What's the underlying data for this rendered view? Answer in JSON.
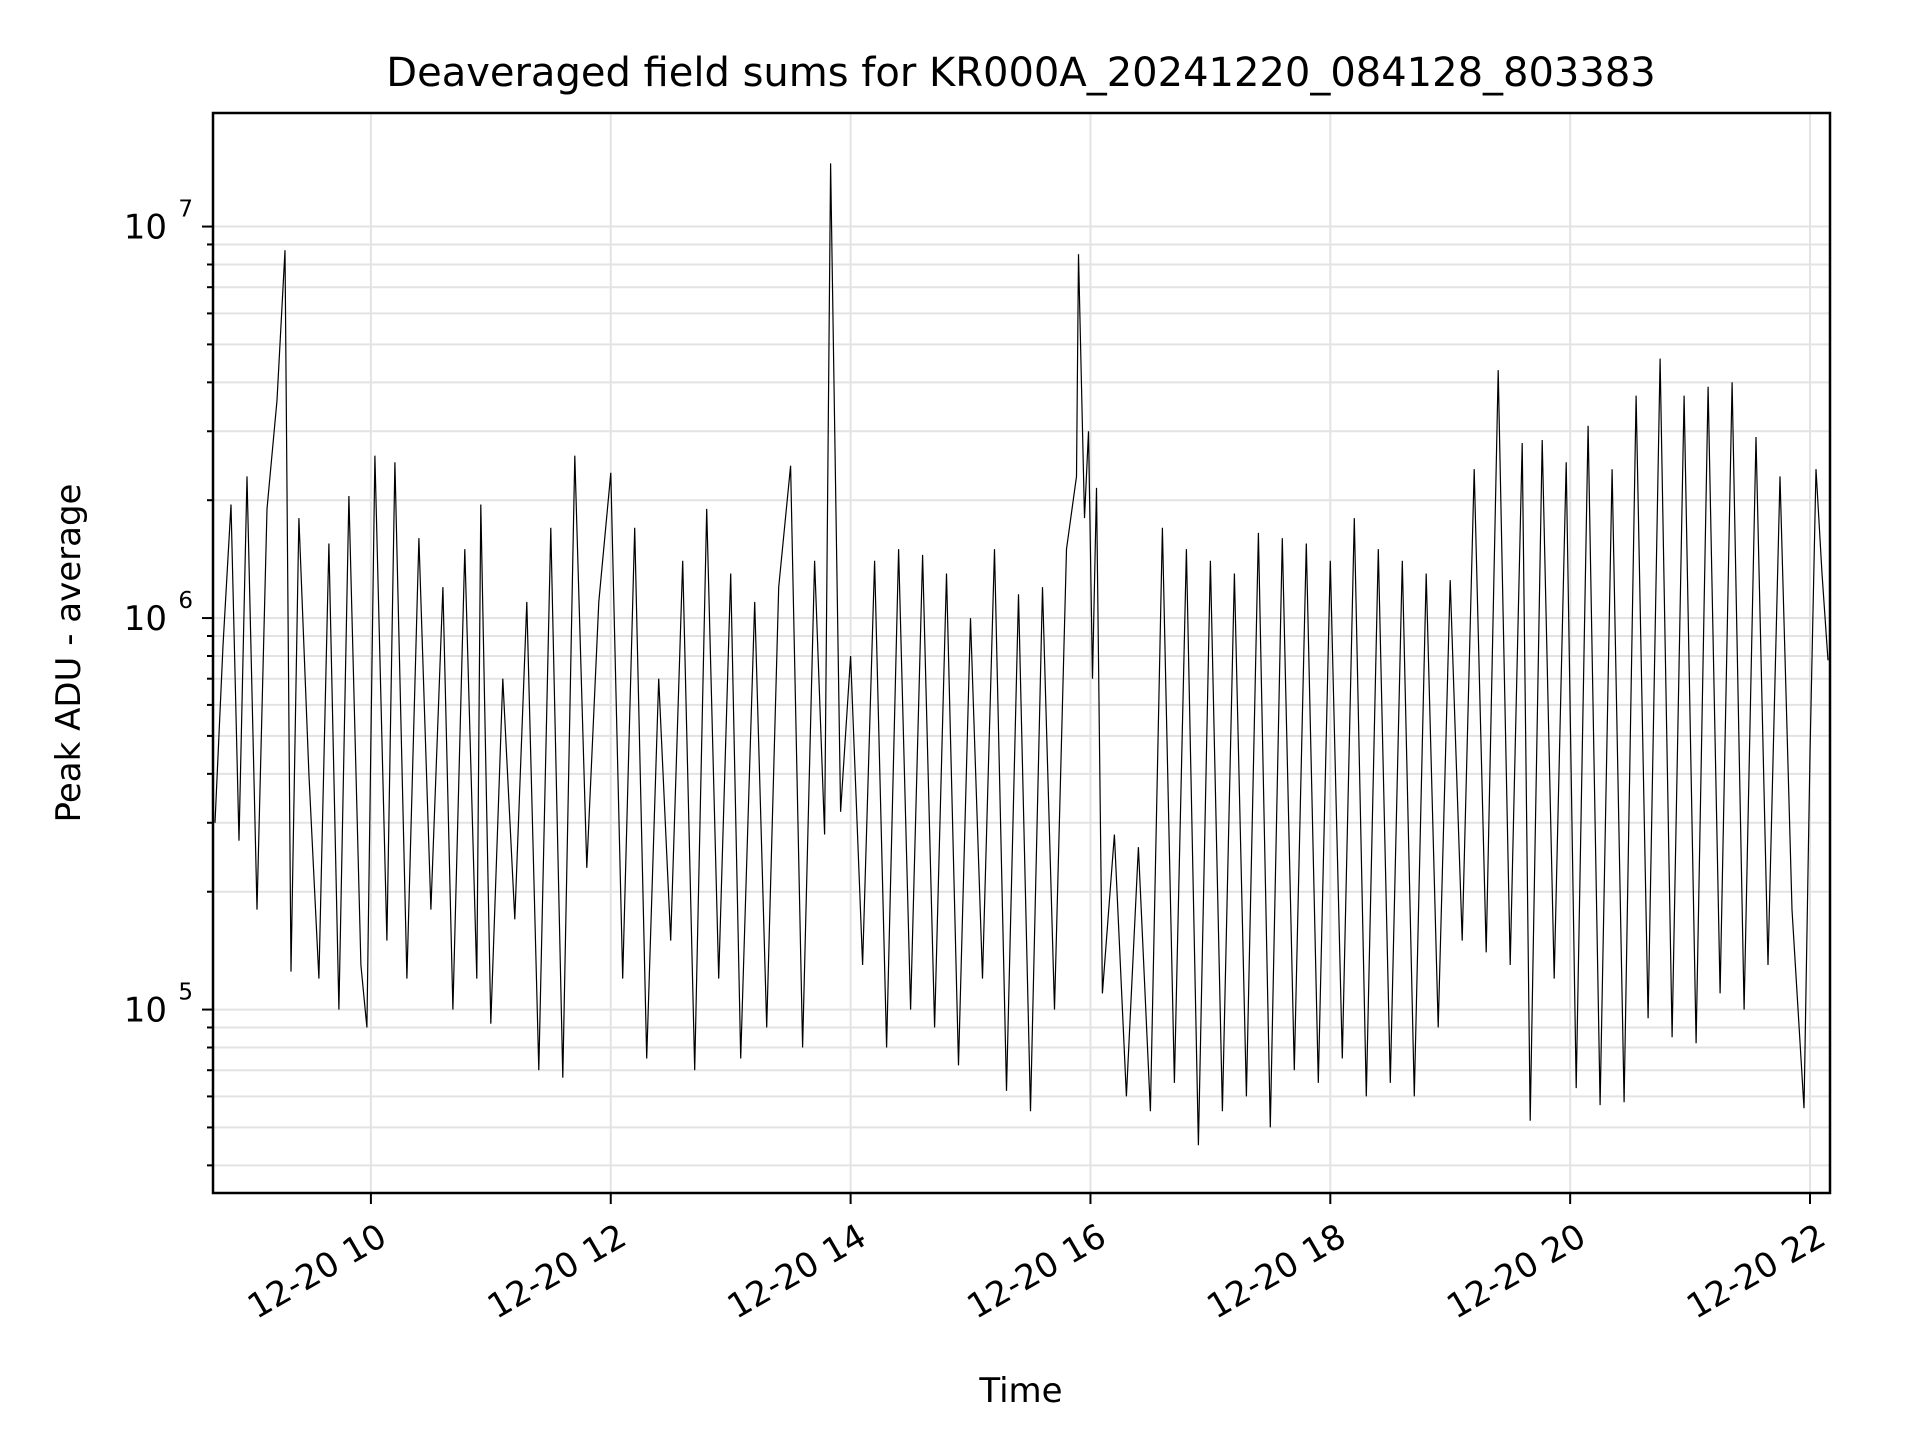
{
  "chart_data": {
    "type": "line",
    "title": "Deaveraged field sums for KR000A_20241220_084128_803383",
    "xlabel": "Time",
    "ylabel": "Peak ADU - average",
    "x_scale": "time",
    "y_scale": "log",
    "xlim": [
      "2024-12-20 08:41",
      "2024-12-20 22:10"
    ],
    "ylim": [
      34000,
      19500000
    ],
    "x_ticks": [
      {
        "label": "12-20 10",
        "t": "2024-12-20 10:00"
      },
      {
        "label": "12-20 12",
        "t": "2024-12-20 12:00"
      },
      {
        "label": "12-20 14",
        "t": "2024-12-20 14:00"
      },
      {
        "label": "12-20 16",
        "t": "2024-12-20 16:00"
      },
      {
        "label": "12-20 18",
        "t": "2024-12-20 18:00"
      },
      {
        "label": "12-20 20",
        "t": "2024-12-20 20:00"
      },
      {
        "label": "12-20 22",
        "t": "2024-12-20 22:00"
      }
    ],
    "y_ticks": [
      {
        "base": "10",
        "exp": "5",
        "value": 100000
      },
      {
        "base": "10",
        "exp": "6",
        "value": 1000000
      },
      {
        "base": "10",
        "exp": "7",
        "value": 10000000
      }
    ],
    "grid": true,
    "line_color": "#000000",
    "series": [
      {
        "points": [
          [
            "2024-12-20 08:42",
            300000
          ],
          [
            "2024-12-20 08:46",
            850000
          ],
          [
            "2024-12-20 08:50",
            1950000
          ],
          [
            "2024-12-20 08:54",
            270000
          ],
          [
            "2024-12-20 08:58",
            2300000
          ],
          [
            "2024-12-20 09:03",
            180000
          ],
          [
            "2024-12-20 09:08",
            1900000
          ],
          [
            "2024-12-20 09:13",
            3600000
          ],
          [
            "2024-12-20 09:17",
            8700000
          ],
          [
            "2024-12-20 09:20",
            125000
          ],
          [
            "2024-12-20 09:24",
            1800000
          ],
          [
            "2024-12-20 09:29",
            400000
          ],
          [
            "2024-12-20 09:34",
            120000
          ],
          [
            "2024-12-20 09:39",
            1550000
          ],
          [
            "2024-12-20 09:44",
            100000
          ],
          [
            "2024-12-20 09:49",
            2050000
          ],
          [
            "2024-12-20 09:55",
            130000
          ],
          [
            "2024-12-20 09:58",
            90000
          ],
          [
            "2024-12-20 10:02",
            2600000
          ],
          [
            "2024-12-20 10:08",
            150000
          ],
          [
            "2024-12-20 10:12",
            2500000
          ],
          [
            "2024-12-20 10:18",
            120000
          ],
          [
            "2024-12-20 10:24",
            1600000
          ],
          [
            "2024-12-20 10:30",
            180000
          ],
          [
            "2024-12-20 10:36",
            1200000
          ],
          [
            "2024-12-20 10:41",
            100000
          ],
          [
            "2024-12-20 10:47",
            1500000
          ],
          [
            "2024-12-20 10:53",
            120000
          ],
          [
            "2024-12-20 10:55",
            1950000
          ],
          [
            "2024-12-20 11:00",
            92000
          ],
          [
            "2024-12-20 11:06",
            700000
          ],
          [
            "2024-12-20 11:12",
            170000
          ],
          [
            "2024-12-20 11:18",
            1100000
          ],
          [
            "2024-12-20 11:24",
            70000
          ],
          [
            "2024-12-20 11:30",
            1700000
          ],
          [
            "2024-12-20 11:36",
            67000
          ],
          [
            "2024-12-20 11:42",
            2600000
          ],
          [
            "2024-12-20 11:48",
            230000
          ],
          [
            "2024-12-20 11:54",
            1100000
          ],
          [
            "2024-12-20 12:00",
            2350000
          ],
          [
            "2024-12-20 12:06",
            120000
          ],
          [
            "2024-12-20 12:12",
            1700000
          ],
          [
            "2024-12-20 12:18",
            75000
          ],
          [
            "2024-12-20 12:24",
            700000
          ],
          [
            "2024-12-20 12:30",
            150000
          ],
          [
            "2024-12-20 12:36",
            1400000
          ],
          [
            "2024-12-20 12:42",
            70000
          ],
          [
            "2024-12-20 12:48",
            1900000
          ],
          [
            "2024-12-20 12:54",
            120000
          ],
          [
            "2024-12-20 13:00",
            1300000
          ],
          [
            "2024-12-20 13:05",
            75000
          ],
          [
            "2024-12-20 13:12",
            1100000
          ],
          [
            "2024-12-20 13:18",
            90000
          ],
          [
            "2024-12-20 13:24",
            1200000
          ],
          [
            "2024-12-20 13:30",
            2450000
          ],
          [
            "2024-12-20 13:36",
            80000
          ],
          [
            "2024-12-20 13:42",
            1400000
          ],
          [
            "2024-12-20 13:47",
            280000
          ],
          [
            "2024-12-20 13:50",
            14500000
          ],
          [
            "2024-12-20 13:55",
            320000
          ],
          [
            "2024-12-20 14:00",
            800000
          ],
          [
            "2024-12-20 14:06",
            130000
          ],
          [
            "2024-12-20 14:12",
            1400000
          ],
          [
            "2024-12-20 14:18",
            80000
          ],
          [
            "2024-12-20 14:24",
            1500000
          ],
          [
            "2024-12-20 14:30",
            100000
          ],
          [
            "2024-12-20 14:36",
            1450000
          ],
          [
            "2024-12-20 14:42",
            90000
          ],
          [
            "2024-12-20 14:48",
            1300000
          ],
          [
            "2024-12-20 14:54",
            72000
          ],
          [
            "2024-12-20 15:00",
            1000000
          ],
          [
            "2024-12-20 15:06",
            120000
          ],
          [
            "2024-12-20 15:12",
            1500000
          ],
          [
            "2024-12-20 15:18",
            62000
          ],
          [
            "2024-12-20 15:24",
            1150000
          ],
          [
            "2024-12-20 15:30",
            55000
          ],
          [
            "2024-12-20 15:36",
            1200000
          ],
          [
            "2024-12-20 15:42",
            100000
          ],
          [
            "2024-12-20 15:48",
            1500000
          ],
          [
            "2024-12-20 15:53",
            2300000
          ],
          [
            "2024-12-20 15:54",
            8500000
          ],
          [
            "2024-12-20 15:57",
            1800000
          ],
          [
            "2024-12-20 15:59",
            3000000
          ],
          [
            "2024-12-20 16:01",
            700000
          ],
          [
            "2024-12-20 16:03",
            2150000
          ],
          [
            "2024-12-20 16:06",
            110000
          ],
          [
            "2024-12-20 16:12",
            280000
          ],
          [
            "2024-12-20 16:18",
            60000
          ],
          [
            "2024-12-20 16:24",
            260000
          ],
          [
            "2024-12-20 16:30",
            55000
          ],
          [
            "2024-12-20 16:36",
            1700000
          ],
          [
            "2024-12-20 16:42",
            65000
          ],
          [
            "2024-12-20 16:48",
            1500000
          ],
          [
            "2024-12-20 16:54",
            45000
          ],
          [
            "2024-12-20 17:00",
            1400000
          ],
          [
            "2024-12-20 17:06",
            55000
          ],
          [
            "2024-12-20 17:12",
            1300000
          ],
          [
            "2024-12-20 17:18",
            60000
          ],
          [
            "2024-12-20 17:24",
            1650000
          ],
          [
            "2024-12-20 17:30",
            50000
          ],
          [
            "2024-12-20 17:36",
            1600000
          ],
          [
            "2024-12-20 17:42",
            70000
          ],
          [
            "2024-12-20 17:48",
            1550000
          ],
          [
            "2024-12-20 17:54",
            65000
          ],
          [
            "2024-12-20 18:00",
            1400000
          ],
          [
            "2024-12-20 18:06",
            75000
          ],
          [
            "2024-12-20 18:12",
            1800000
          ],
          [
            "2024-12-20 18:18",
            60000
          ],
          [
            "2024-12-20 18:24",
            1500000
          ],
          [
            "2024-12-20 18:30",
            65000
          ],
          [
            "2024-12-20 18:36",
            1400000
          ],
          [
            "2024-12-20 18:42",
            60000
          ],
          [
            "2024-12-20 18:48",
            1300000
          ],
          [
            "2024-12-20 18:54",
            90000
          ],
          [
            "2024-12-20 19:00",
            1250000
          ],
          [
            "2024-12-20 19:06",
            150000
          ],
          [
            "2024-12-20 19:12",
            2400000
          ],
          [
            "2024-12-20 19:18",
            140000
          ],
          [
            "2024-12-20 19:24",
            4300000
          ],
          [
            "2024-12-20 19:30",
            130000
          ],
          [
            "2024-12-20 19:36",
            2800000
          ],
          [
            "2024-12-20 19:40",
            52000
          ],
          [
            "2024-12-20 19:46",
            2850000
          ],
          [
            "2024-12-20 19:52",
            120000
          ],
          [
            "2024-12-20 19:58",
            2500000
          ],
          [
            "2024-12-20 20:03",
            63000
          ],
          [
            "2024-12-20 20:09",
            3100000
          ],
          [
            "2024-12-20 20:15",
            57000
          ],
          [
            "2024-12-20 20:21",
            2400000
          ],
          [
            "2024-12-20 20:27",
            58000
          ],
          [
            "2024-12-20 20:33",
            3700000
          ],
          [
            "2024-12-20 20:39",
            95000
          ],
          [
            "2024-12-20 20:45",
            4600000
          ],
          [
            "2024-12-20 20:51",
            85000
          ],
          [
            "2024-12-20 20:57",
            3700000
          ],
          [
            "2024-12-20 21:03",
            82000
          ],
          [
            "2024-12-20 21:09",
            3900000
          ],
          [
            "2024-12-20 21:15",
            110000
          ],
          [
            "2024-12-20 21:21",
            4000000
          ],
          [
            "2024-12-20 21:27",
            100000
          ],
          [
            "2024-12-20 21:33",
            2900000
          ],
          [
            "2024-12-20 21:39",
            130000
          ],
          [
            "2024-12-20 21:45",
            2300000
          ],
          [
            "2024-12-20 21:51",
            180000
          ],
          [
            "2024-12-20 21:57",
            56000
          ],
          [
            "2024-12-20 22:00",
            450000
          ],
          [
            "2024-12-20 22:03",
            2400000
          ],
          [
            "2024-12-20 22:06",
            1300000
          ],
          [
            "2024-12-20 22:09",
            780000
          ]
        ]
      }
    ]
  }
}
